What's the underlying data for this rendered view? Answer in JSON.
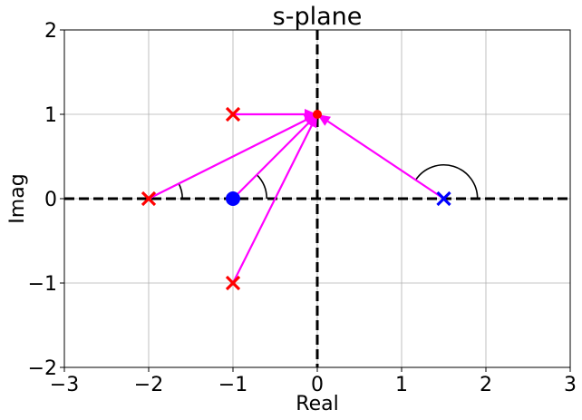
{
  "chart_data": {
    "type": "scatter",
    "title": "s-plane",
    "xlabel": "Real",
    "ylabel": "Imag",
    "xlim": [
      -3,
      3
    ],
    "ylim": [
      -2,
      2
    ],
    "grid": true,
    "xticks": [
      -3,
      -2,
      -1,
      0,
      1,
      2,
      3
    ],
    "yticks": [
      -2,
      -1,
      0,
      1,
      2
    ],
    "xtick_labels": [
      "−3",
      "−2",
      "−1",
      "0",
      "1",
      "2",
      "3"
    ],
    "ytick_labels": [
      "−2",
      "−1",
      "0",
      "1",
      "2"
    ],
    "reference_lines": [
      {
        "orientation": "horizontal",
        "value": 0,
        "style": "dashed",
        "color": "#000000"
      },
      {
        "orientation": "vertical",
        "value": 0,
        "style": "dashed",
        "color": "#000000"
      }
    ],
    "test_point": {
      "x": 0,
      "y": 1,
      "marker": "dot",
      "color": "#ff0000"
    },
    "poles": [
      {
        "x": -1,
        "y": 1,
        "color": "#ff0000"
      },
      {
        "x": -2,
        "y": 0,
        "color": "#ff0000"
      },
      {
        "x": -1,
        "y": -1,
        "color": "#ff0000"
      },
      {
        "x": 1.5,
        "y": 0,
        "color": "#0000ff"
      }
    ],
    "zeros": [
      {
        "x": -1,
        "y": 0,
        "color": "#0000ff"
      }
    ],
    "vectors": [
      {
        "from": [
          -1,
          1
        ],
        "to": [
          0,
          1
        ],
        "color": "#ff00ff"
      },
      {
        "from": [
          -2,
          0
        ],
        "to": [
          0,
          1
        ],
        "color": "#ff00ff"
      },
      {
        "from": [
          -1,
          0
        ],
        "to": [
          0,
          1
        ],
        "color": "#ff00ff"
      },
      {
        "from": [
          -1,
          -1
        ],
        "to": [
          0,
          1
        ],
        "color": "#ff00ff"
      },
      {
        "from": [
          1.5,
          0
        ],
        "to": [
          0,
          1
        ],
        "color": "#ff00ff"
      }
    ],
    "angle_arcs": [
      {
        "center": [
          -2,
          0
        ],
        "radius": 0.4,
        "from_deg": 0,
        "to_deg": 26.6
      },
      {
        "center": [
          -1,
          0
        ],
        "radius": 0.4,
        "from_deg": 0,
        "to_deg": 45
      },
      {
        "center": [
          1.5,
          0
        ],
        "radius": 0.4,
        "from_deg": 0,
        "to_deg": 146.3
      }
    ]
  }
}
